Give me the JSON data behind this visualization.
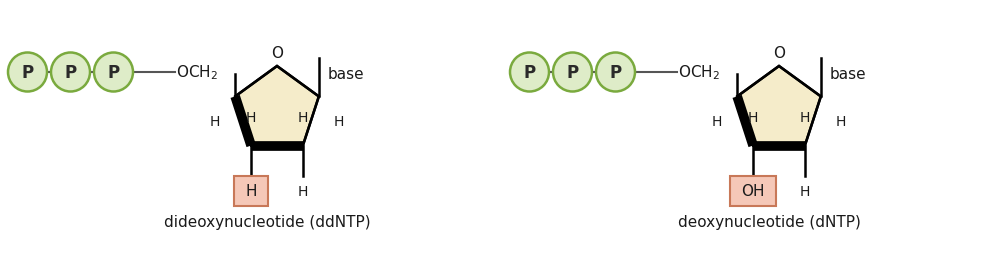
{
  "bg_color": "#ffffff",
  "fig_width": 10.08,
  "fig_height": 2.55,
  "dpi": 100,
  "circle_fill": "#deecc8",
  "circle_edge": "#7aaa3e",
  "pentagon_fill": "#f5ecca",
  "pentagon_edge": "#000000",
  "highlight_fill": "#f5c8b8",
  "highlight_edge": "#c87858",
  "text_color": "#1a1a1a",
  "left_label": "dideoxynucleotide (ddNTP)",
  "right_label": "deoxynucleotide (dNTP)",
  "left_highlight_text": "H",
  "right_highlight_text": "OH"
}
